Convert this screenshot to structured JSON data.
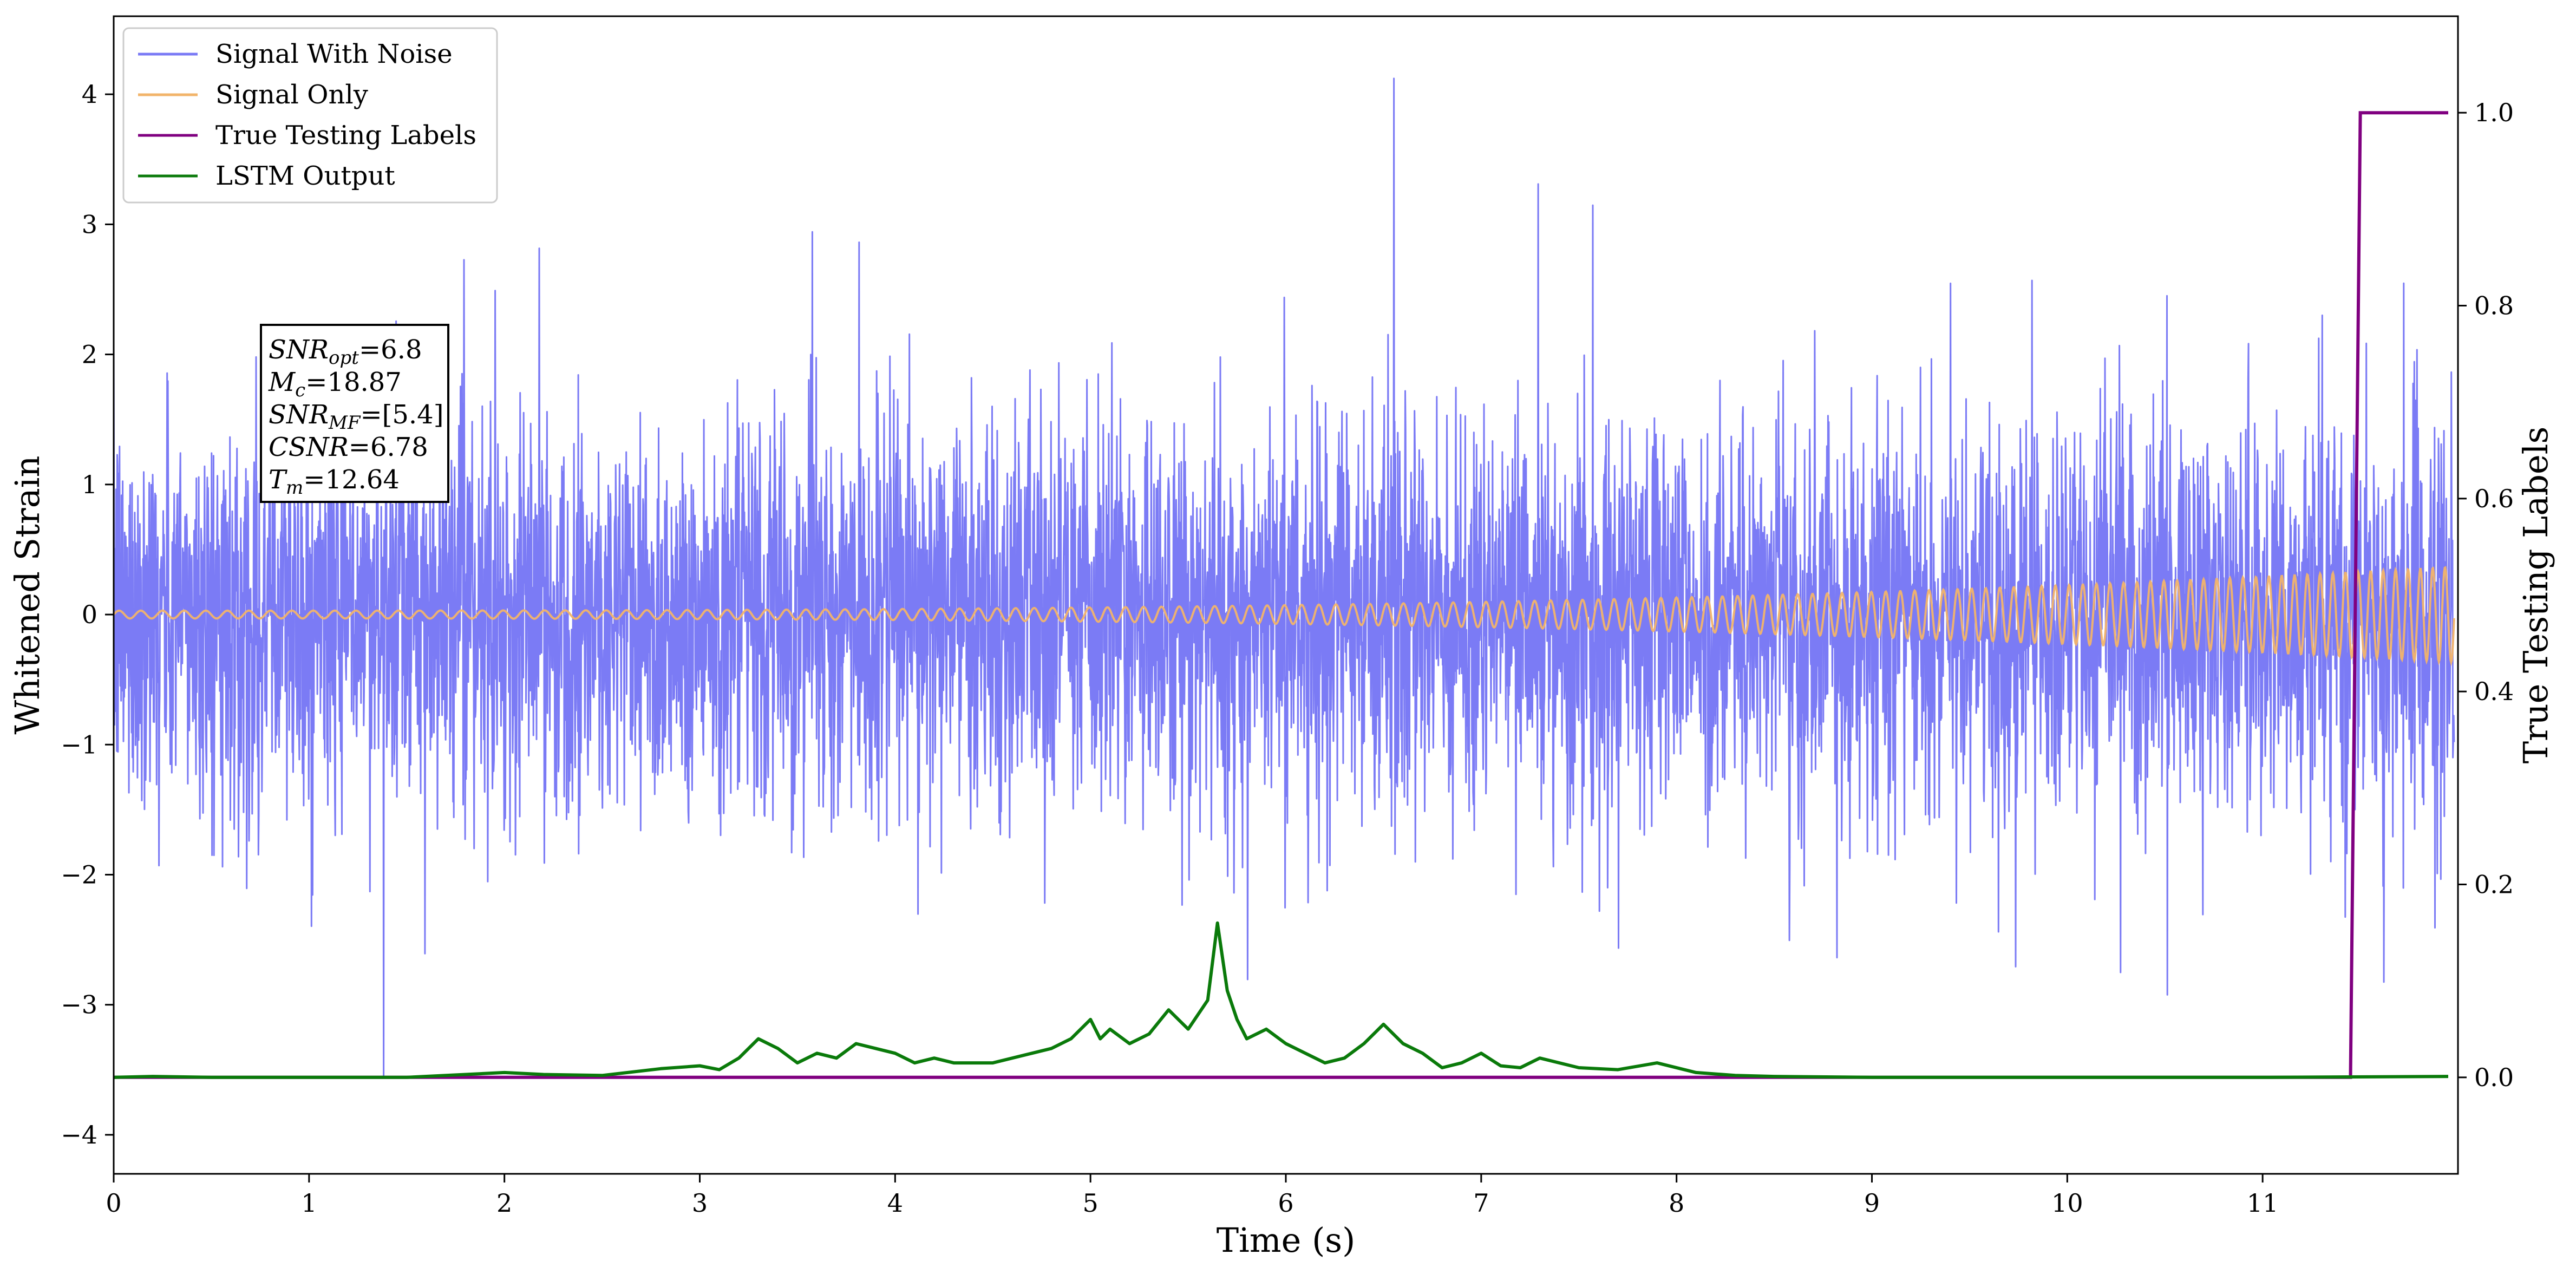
{
  "chart_data": {
    "type": "line",
    "title": "",
    "xlabel": "Time (s)",
    "ylabel": "Whitened Strain",
    "y2label": "True Testing Labels",
    "xlim": [
      0,
      12
    ],
    "ylim": [
      -4.3,
      4.6
    ],
    "y2lim": [
      -0.1,
      1.1
    ],
    "xticks": [
      0,
      1,
      2,
      3,
      4,
      5,
      6,
      7,
      8,
      9,
      10,
      11
    ],
    "xtick_labels": [
      "0",
      "1",
      "2",
      "3",
      "4",
      "5",
      "6",
      "7",
      "8",
      "9",
      "10",
      "11"
    ],
    "yticks": [
      -4,
      -3,
      -2,
      -1,
      0,
      1,
      2,
      3,
      4
    ],
    "ytick_labels": [
      "−4",
      "−3",
      "−2",
      "−1",
      "0",
      "1",
      "2",
      "3",
      "4"
    ],
    "y2ticks": [
      0.0,
      0.2,
      0.4,
      0.6,
      0.8,
      1.0
    ],
    "y2tick_labels": [
      "0.0",
      "0.2",
      "0.4",
      "0.6",
      "0.8",
      "1.0"
    ],
    "grid": false,
    "legend_position": "top-left",
    "colors": {
      "noise": "#7b7bf5",
      "signal": "#f2b46a",
      "labels": "#800080",
      "lstm": "#0a7a0a"
    },
    "series": [
      {
        "name": "Signal With Noise",
        "axis": "left",
        "description_values": {
          "mean": 0.0,
          "std_approx": 0.75,
          "max": 4.3,
          "min": -3.9
        }
      },
      {
        "name": "Signal Only",
        "axis": "left",
        "amplitude_start": 0.03,
        "amplitude_end": 0.37
      },
      {
        "name": "True Testing Labels",
        "axis": "right",
        "x": [
          0,
          11.45,
          11.5,
          11.95
        ],
        "y": [
          0,
          0,
          1,
          1
        ]
      },
      {
        "name": "LSTM Output",
        "axis": "right",
        "x": [
          0,
          0.2,
          0.5,
          1.0,
          1.5,
          1.8,
          2.0,
          2.2,
          2.5,
          2.8,
          3.0,
          3.1,
          3.2,
          3.3,
          3.4,
          3.5,
          3.6,
          3.7,
          3.8,
          3.9,
          4.0,
          4.1,
          4.2,
          4.3,
          4.5,
          4.7,
          4.8,
          4.9,
          5.0,
          5.05,
          5.1,
          5.2,
          5.3,
          5.4,
          5.5,
          5.6,
          5.65,
          5.7,
          5.75,
          5.8,
          5.9,
          6.0,
          6.1,
          6.2,
          6.3,
          6.4,
          6.5,
          6.6,
          6.7,
          6.8,
          6.9,
          7.0,
          7.1,
          7.2,
          7.3,
          7.5,
          7.7,
          7.9,
          8.1,
          8.3,
          8.5,
          9.0,
          10.0,
          11.0,
          11.95
        ],
        "y": [
          0.0,
          0.001,
          0.0,
          0.0,
          0.0,
          0.003,
          0.005,
          0.003,
          0.002,
          0.009,
          0.012,
          0.008,
          0.02,
          0.04,
          0.03,
          0.015,
          0.025,
          0.02,
          0.035,
          0.03,
          0.025,
          0.015,
          0.02,
          0.015,
          0.015,
          0.025,
          0.03,
          0.04,
          0.06,
          0.04,
          0.05,
          0.035,
          0.045,
          0.07,
          0.05,
          0.08,
          0.16,
          0.09,
          0.06,
          0.04,
          0.05,
          0.035,
          0.025,
          0.015,
          0.02,
          0.035,
          0.055,
          0.035,
          0.025,
          0.01,
          0.015,
          0.025,
          0.012,
          0.01,
          0.02,
          0.01,
          0.008,
          0.015,
          0.005,
          0.002,
          0.001,
          0.0,
          0.0,
          0.0,
          0.001
        ]
      }
    ],
    "annotation": {
      "lines": [
        {
          "var": "SNR",
          "sub": "opt",
          "value": "=6.8"
        },
        {
          "var": "M",
          "sub": "c",
          "value": "=18.87"
        },
        {
          "var": "SNR",
          "sub": "MF",
          "value": "=[5.4]"
        },
        {
          "var": "CSNR",
          "sub": "",
          "value": "=6.78"
        },
        {
          "var": "T",
          "sub": "m",
          "value": "=12.64"
        }
      ]
    }
  }
}
